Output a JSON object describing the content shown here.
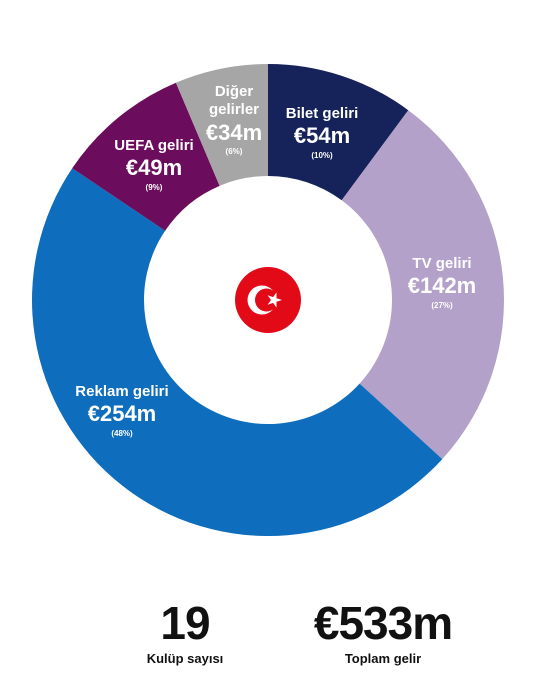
{
  "chart_data": {
    "type": "pie",
    "variant": "donut",
    "slices": [
      {
        "name": "Bilet geliri",
        "value": 54,
        "value_label": "€54m",
        "pct_label": "(10%)",
        "color": "#16225a"
      },
      {
        "name": "TV geliri",
        "value": 142,
        "value_label": "€142m",
        "pct_label": "(27%)",
        "color": "#b3a1c9"
      },
      {
        "name": "Reklam geliri",
        "value": 254,
        "value_label": "€254m",
        "pct_label": "(48%)",
        "color": "#0e6dbd"
      },
      {
        "name": "UEFA geliri",
        "value": 49,
        "value_label": "€49m",
        "pct_label": "(9%)",
        "color": "#6b0d5c"
      },
      {
        "name": "Diğer gelirler",
        "value": 34,
        "value_label": "€34m",
        "pct_label": "(6%)",
        "color": "#a6a6a6"
      }
    ],
    "center_icon": "turkey-flag-icon",
    "flag_color": "#e30a17"
  },
  "stats": {
    "clubs_value": "19",
    "clubs_label": "Kulüp sayısı",
    "revenue_value": "€533m",
    "revenue_label": "Toplam gelir"
  }
}
